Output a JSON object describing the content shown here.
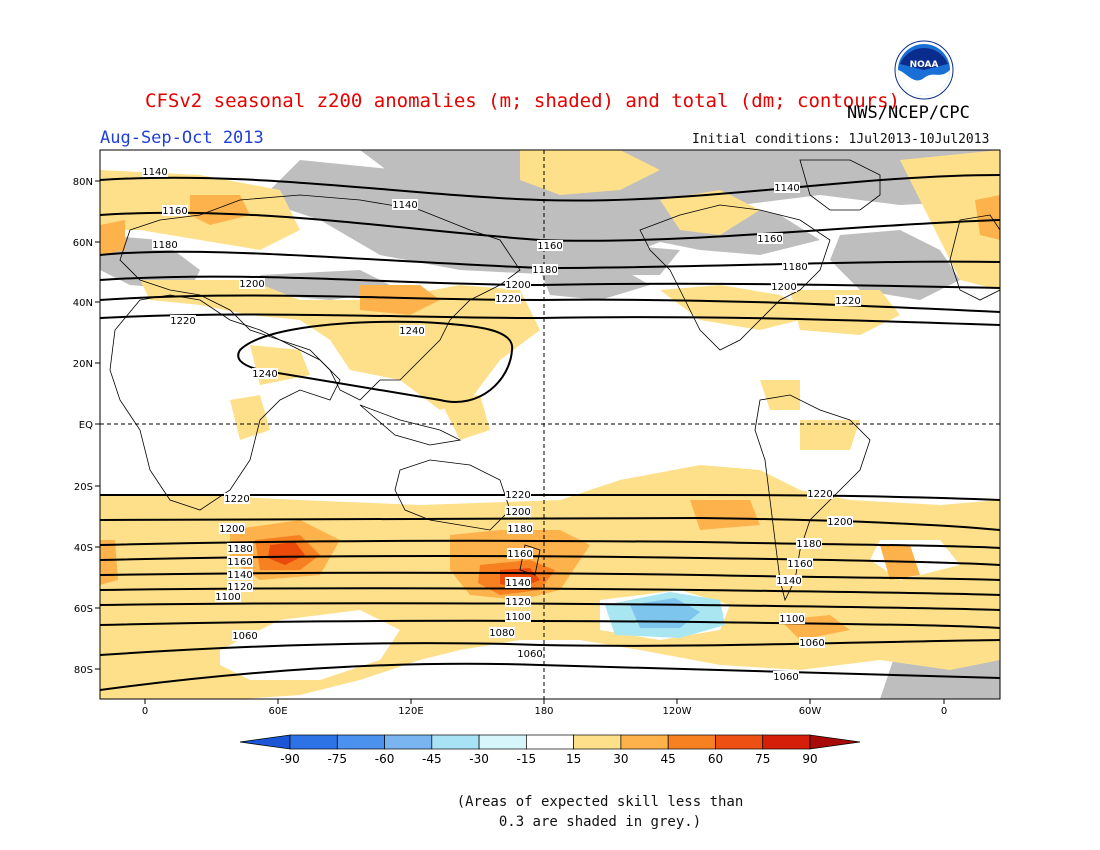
{
  "header": {
    "title": "CFSv2 seasonal z200 anomalies (m; shaded) and total (dm; contours)",
    "agency": "NWS/NCEP/CPC",
    "season": "Aug-Sep-Oct 2013",
    "initial_conditions": "Initial conditions: 1Jul2013-10Jul2013",
    "logo_text": "NOAA"
  },
  "map": {
    "lat_labels": [
      "80N",
      "60N",
      "40N",
      "20N",
      "EQ",
      "20S",
      "40S",
      "60S",
      "80S"
    ],
    "lon_labels": [
      "0",
      "60E",
      "120E",
      "180",
      "120W",
      "60W",
      "0"
    ],
    "contour_labels": [
      "1140",
      "1140",
      "1140",
      "1160",
      "1160",
      "1160",
      "1180",
      "1180",
      "1180",
      "1200",
      "1200",
      "1200",
      "1220",
      "1220",
      "1220",
      "1240",
      "1240",
      "1220",
      "1220",
      "1220",
      "1200",
      "1200",
      "1200",
      "1180",
      "1180",
      "1180",
      "1160",
      "1160",
      "1160",
      "1140",
      "1140",
      "1140",
      "1120",
      "1120",
      "1100",
      "1100",
      "1100",
      "1060",
      "1080",
      "1060",
      "1060",
      "1060"
    ],
    "colors": {
      "skill_grey": "#bebebe",
      "pos15_30": "#fee08a",
      "pos30_45": "#fdb24c",
      "pos45_60": "#f78020",
      "pos60_75": "#ea4a0a",
      "neg15_30": "#a8e6f2",
      "neg30_45": "#7ec5ee"
    }
  },
  "colorbar": {
    "labels": [
      "-90",
      "-75",
      "-60",
      "-45",
      "-30",
      "-15",
      "15",
      "30",
      "45",
      "60",
      "75",
      "90"
    ],
    "colors": [
      "#1a56d6",
      "#2e73e6",
      "#4b91ee",
      "#7ab5f2",
      "#a8e3f5",
      "#d6f6fb",
      "#ffffff",
      "#fee08a",
      "#fdb24c",
      "#f78020",
      "#ee5014",
      "#d61f0a",
      "#a80a0a"
    ]
  },
  "skill_note": "(Areas of expected skill less than 0.3 are shaded in grey.)"
}
